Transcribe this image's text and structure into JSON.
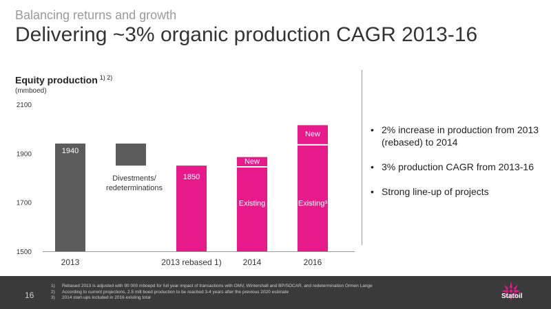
{
  "header": {
    "supertitle": "Balancing returns and growth",
    "title": "Delivering ~3% organic production CAGR 2013-16"
  },
  "chart_data": {
    "type": "bar",
    "title": "Equity production",
    "title_notes": "1) 2)",
    "unit": "(mmboed)",
    "ylim": [
      1500,
      2100
    ],
    "yticks": [
      "2100",
      "1900",
      "1700",
      "1500"
    ],
    "categories": [
      "2013",
      "2013 rebased 1)",
      "2014",
      "2016"
    ],
    "bars": [
      {
        "category": "2013",
        "base": 1500,
        "value": 1940,
        "label": "1940",
        "color": "#5c5c5c"
      },
      {
        "category": "",
        "base": 1850,
        "value": 1940,
        "label": "Divestments/\nredeterminations",
        "color": "#5c5c5c"
      },
      {
        "category": "2013 rebased 1)",
        "base": 1500,
        "value": 1850,
        "label": "1850",
        "color": "#e8198b"
      },
      {
        "category": "2014",
        "base": 1500,
        "value": 1845,
        "label": "Existing",
        "color": "#e8198b"
      },
      {
        "category": "2014",
        "base": 1845,
        "value": 1885,
        "label": "New",
        "color": "#e8198b"
      },
      {
        "category": "2016",
        "base": 1500,
        "value": 1935,
        "label": "Existing³",
        "color": "#e8198b"
      },
      {
        "category": "2016",
        "base": 1935,
        "value": 2015,
        "label": "New",
        "color": "#e8198b"
      }
    ],
    "colors": {
      "grey": "#5c5c5c",
      "pink": "#e8198b"
    }
  },
  "bullets": [
    "2% increase in production from 2013 (rebased) to 2014",
    "3% production CAGR from 2013-16",
    "Strong line-up of projects"
  ],
  "footer": {
    "page_number": "16",
    "footnotes": [
      {
        "num": "1)",
        "text": "Rebased 2013 is adjusted with 90 000 mboepd for full year impact of transactions with OMV, Wintershall and BP/SOCAR, and redetermination Ormen Lange"
      },
      {
        "num": "2)",
        "text": "According to current projections, 2.5 mill boed production to be reached 3-4 years after the previous 2020 estimate"
      },
      {
        "num": "3)",
        "text": "2014 start-ups included in 2016 existing total"
      }
    ],
    "logo_text": "Statoil"
  }
}
